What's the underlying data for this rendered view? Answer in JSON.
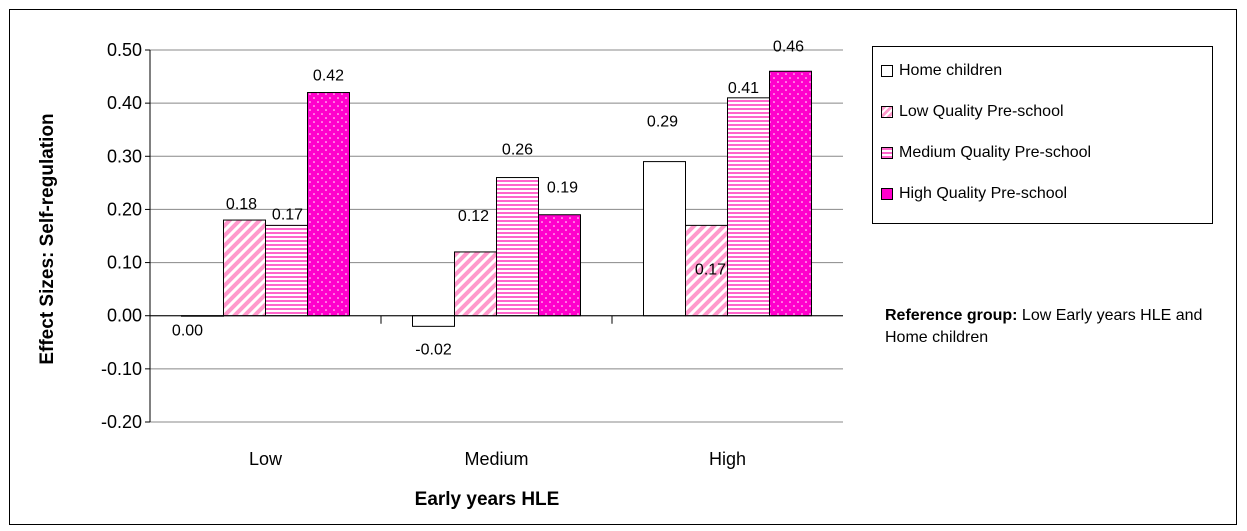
{
  "chart_data": {
    "type": "bar",
    "title": "",
    "xlabel": "Early years HLE",
    "ylabel": "Effect Sizes: Self-regulation",
    "ylim": [
      -0.2,
      0.5
    ],
    "y_ticks": [
      "0.50",
      "0.40",
      "0.30",
      "0.20",
      "0.10",
      "0.00",
      "-0.10",
      "-0.20"
    ],
    "categories": [
      "Low",
      "Medium",
      "High"
    ],
    "grid": true,
    "legend_position": "right",
    "series": [
      {
        "name": "Home children",
        "values": [
          0.0,
          -0.02,
          0.29
        ],
        "labels": [
          "0.00",
          "-0.02",
          "0.29"
        ],
        "color": "#ffffff",
        "pattern": "solid"
      },
      {
        "name": "Low Quality Pre-school",
        "values": [
          0.18,
          0.12,
          0.17
        ],
        "labels": [
          "0.18",
          "0.12",
          "0.17"
        ],
        "color": "#ff99cc",
        "pattern": "diagonal"
      },
      {
        "name": "Medium Quality Pre-school",
        "values": [
          0.17,
          0.26,
          0.41
        ],
        "labels": [
          "0.17",
          "0.26",
          "0.41"
        ],
        "color": "#ff66cc",
        "pattern": "horizontal"
      },
      {
        "name": "High Quality Pre-school",
        "values": [
          0.42,
          0.19,
          0.46
        ],
        "labels": [
          "0.42",
          "0.19",
          "0.46"
        ],
        "color": "#ff00cc",
        "pattern": "dots"
      }
    ]
  },
  "reference_note": {
    "bold": "Reference group:",
    "text": " Low Early years HLE and Home children"
  }
}
